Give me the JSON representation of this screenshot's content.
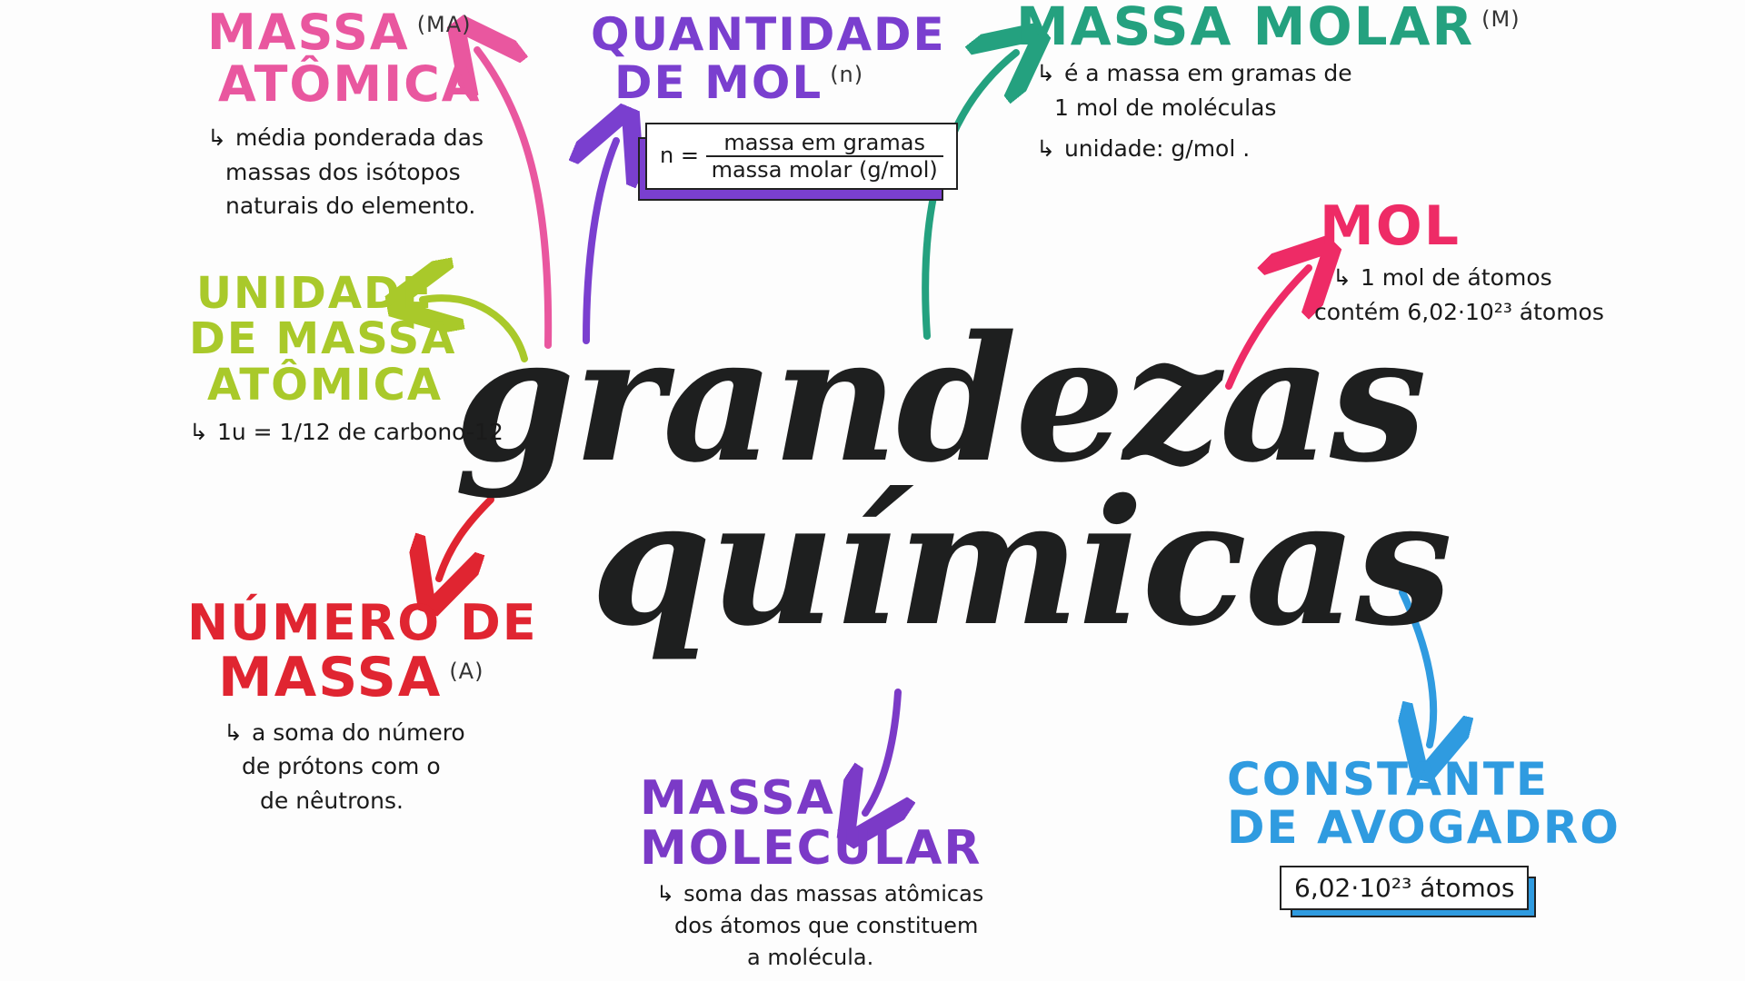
{
  "center": {
    "line1": "grandezas",
    "line2": "químicas"
  },
  "colors": {
    "pink": "#e9579f",
    "purple": "#7a3fcf",
    "teal": "#24a17f",
    "lime": "#a9c92a",
    "red": "#e02531",
    "rose": "#ee2b66",
    "violet": "#7b3ac7",
    "blue": "#2f9be0",
    "ink": "#1e1f1f"
  },
  "massa_atomica": {
    "line1": "MASSA",
    "tag": "(MA)",
    "line2": "ATÔMICA",
    "desc1": "média ponderada das",
    "desc2": "massas dos isótopos",
    "desc3": "naturais do elemento."
  },
  "quantidade_mol": {
    "line1": "QUANTIDADE",
    "line2": "DE MOL",
    "tag": "(n)",
    "formula_lhs": "n =",
    "formula_num": "massa em gramas",
    "formula_den": "massa molar (g/mol)"
  },
  "massa_molar": {
    "line1": "MASSA MOLAR",
    "tag": "(M)",
    "desc1": "é a massa em gramas de",
    "desc2": "1 mol de moléculas",
    "desc3": "unidade: g/mol ."
  },
  "mol": {
    "title": "MOL",
    "desc1": "1 mol de átomos",
    "desc2": "contém 6,02·10²³ átomos"
  },
  "unidade_massa": {
    "line1": "UNIDADE",
    "line2": "DE MASSA",
    "line3": "ATÔMICA",
    "desc": "1u = 1/12 de carbono-12"
  },
  "numero_massa": {
    "line1": "NÚMERO DE",
    "line2": "MASSA",
    "tag": "(A)",
    "desc1": "a soma do número",
    "desc2": "de prótons com o",
    "desc3": "de nêutrons."
  },
  "massa_molecular": {
    "line1": "MASSA",
    "line2": "MOLECULAR",
    "desc1": "soma das massas atômicas",
    "desc2": "dos átomos que constituem",
    "desc3": "a molécula."
  },
  "avogadro": {
    "line1": "CONSTANTE",
    "line2": "DE AVOGADRO",
    "value": "6,02·10²³ átomos"
  },
  "hook_glyph": "↳"
}
